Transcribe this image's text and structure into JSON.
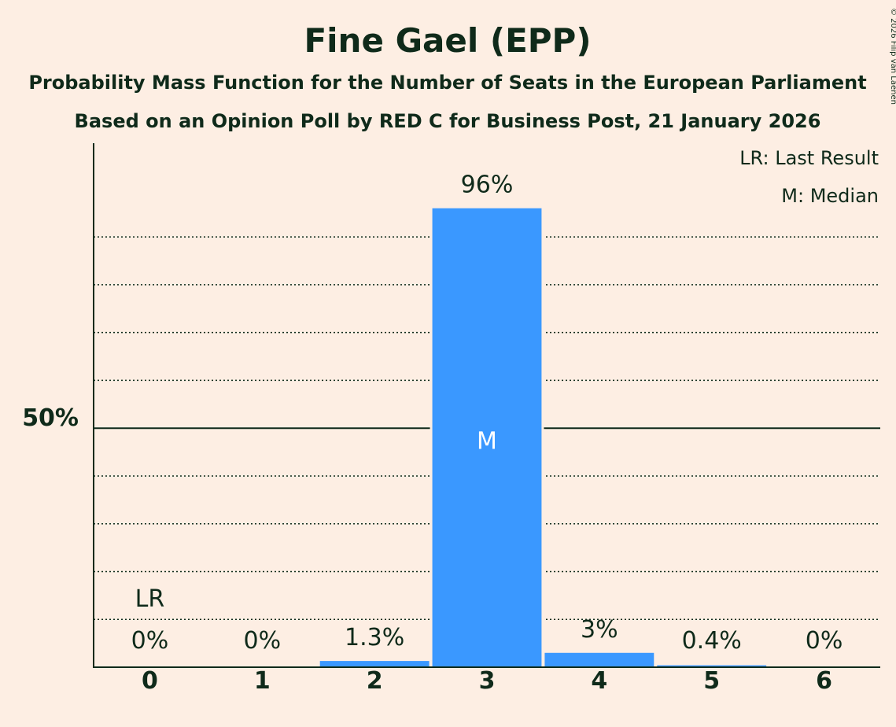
{
  "chart_data": {
    "type": "bar",
    "title": "Fine Gael (EPP)",
    "subtitle_lines": [
      "Probability Mass Function for the Number of Seats in the European Parliament",
      "Based on an Opinion Poll by RED C for Business Post, 21 January 2026"
    ],
    "categories": [
      "0",
      "1",
      "2",
      "3",
      "4",
      "5",
      "6"
    ],
    "values": [
      0,
      0,
      1.3,
      96,
      3,
      0.4,
      0
    ],
    "value_labels": [
      "0%",
      "0%",
      "1.3%",
      "96%",
      "3%",
      "0.4%",
      "0%"
    ],
    "ylim": [
      0,
      105
    ],
    "y_tick_label": "50%",
    "y_tick_value": 50,
    "gridlines": [
      10,
      20,
      30,
      40,
      60,
      70,
      80,
      90
    ],
    "bar_color": "#3A98FF",
    "median_index": 3,
    "median_marker": "M",
    "last_result_index": 0,
    "last_result_marker": "LR",
    "legend": [
      "LR: Last Result",
      "M: Median"
    ],
    "copyright": "© 2026 Filip van Laenen"
  }
}
